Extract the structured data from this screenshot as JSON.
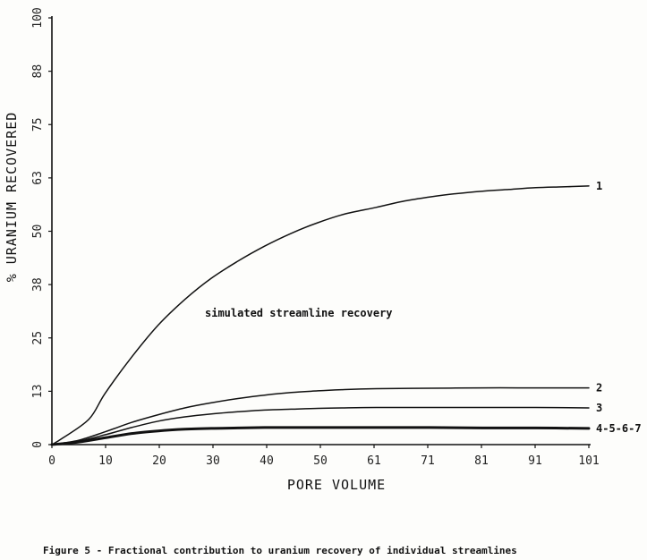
{
  "caption": "Figure 5 - Fractional contribution to uranium recovery of individual streamlines",
  "chart_data": {
    "type": "line",
    "xlabel": "PORE VOLUME",
    "ylabel": "% URANIUM RECOVERED",
    "x_ticks": [
      "0",
      "10",
      "20",
      "30",
      "40",
      "50",
      "61",
      "71",
      "81",
      "91",
      "101"
    ],
    "y_ticks": [
      "0",
      "13",
      "25",
      "38",
      "50",
      "63",
      "75",
      "88",
      "100"
    ],
    "xlim": [
      0,
      101
    ],
    "ylim": [
      0,
      100
    ],
    "grid": false,
    "annotation": "simulated streamline recovery",
    "series": [
      {
        "name": "1",
        "x": [
          0,
          2,
          7,
          10,
          15,
          20,
          25,
          30,
          35,
          40,
          45,
          50,
          55,
          61,
          66,
          71,
          76,
          81,
          86,
          91,
          96,
          101
        ],
        "y": [
          0,
          1.5,
          6,
          12,
          20.5,
          28,
          34,
          39,
          43,
          46.5,
          49.5,
          52,
          54,
          55.6,
          57,
          58,
          58.8,
          59.4,
          59.8,
          60.2,
          60.4,
          60.6
        ],
        "weight": "normal"
      },
      {
        "name": "2",
        "x": [
          0,
          5,
          10,
          15,
          20,
          25,
          30,
          35,
          40,
          45,
          50,
          55,
          61,
          71,
          81,
          91,
          101
        ],
        "y": [
          0,
          1,
          3,
          5.2,
          7,
          8.6,
          9.8,
          10.8,
          11.6,
          12.2,
          12.6,
          12.9,
          13.1,
          13.2,
          13.3,
          13.3,
          13.3
        ],
        "weight": "normal"
      },
      {
        "name": "3",
        "x": [
          0,
          5,
          10,
          15,
          20,
          25,
          30,
          35,
          40,
          45,
          50,
          55,
          61,
          71,
          81,
          91,
          101
        ],
        "y": [
          0,
          0.8,
          2.3,
          4,
          5.5,
          6.5,
          7.2,
          7.7,
          8.1,
          8.3,
          8.5,
          8.6,
          8.7,
          8.7,
          8.7,
          8.7,
          8.6
        ],
        "weight": "normal"
      },
      {
        "name": "4-5-6-7",
        "x": [
          0,
          5,
          10,
          15,
          20,
          25,
          30,
          35,
          40,
          45,
          50,
          55,
          61,
          71,
          81,
          91,
          101
        ],
        "y": [
          0,
          0.6,
          1.6,
          2.6,
          3.2,
          3.6,
          3.8,
          3.9,
          4.0,
          4.0,
          4.0,
          4.0,
          4.0,
          4.0,
          3.9,
          3.9,
          3.8
        ],
        "weight": "bold"
      }
    ]
  }
}
